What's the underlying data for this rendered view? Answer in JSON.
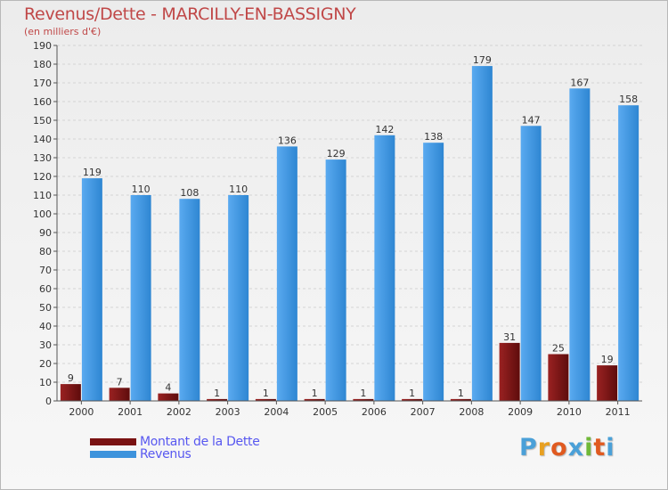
{
  "colors": {
    "dette": "#7a1212",
    "revenus": "#3d93dc",
    "title": "#c04848",
    "legend_text": "#5858f0"
  },
  "chart_data": {
    "type": "bar",
    "title": "Revenus/Dette - MARCILLY-EN-BASSIGNY",
    "subtitle": "(en milliers d'€)",
    "categories": [
      "2000",
      "2001",
      "2002",
      "2003",
      "2004",
      "2005",
      "2006",
      "2007",
      "2008",
      "2009",
      "2010",
      "2011"
    ],
    "series": [
      {
        "name": "Montant de la Dette",
        "values": [
          9,
          7,
          4,
          1,
          1,
          1,
          1,
          1,
          1,
          31,
          25,
          19
        ]
      },
      {
        "name": "Revenus",
        "values": [
          119,
          110,
          108,
          110,
          136,
          129,
          142,
          138,
          179,
          147,
          167,
          158
        ]
      }
    ],
    "ylim": [
      0,
      190
    ],
    "ytick_step": 10,
    "grid": true,
    "legend": "bottom-left"
  },
  "logo": {
    "letters": [
      "P",
      "r",
      "o",
      "x",
      "i",
      "t",
      "i"
    ],
    "colors": [
      "#4aa0d8",
      "#e8a020",
      "#e05a20",
      "#4aa0d8",
      "#70b838",
      "#e05a20",
      "#4aa0d8"
    ]
  }
}
